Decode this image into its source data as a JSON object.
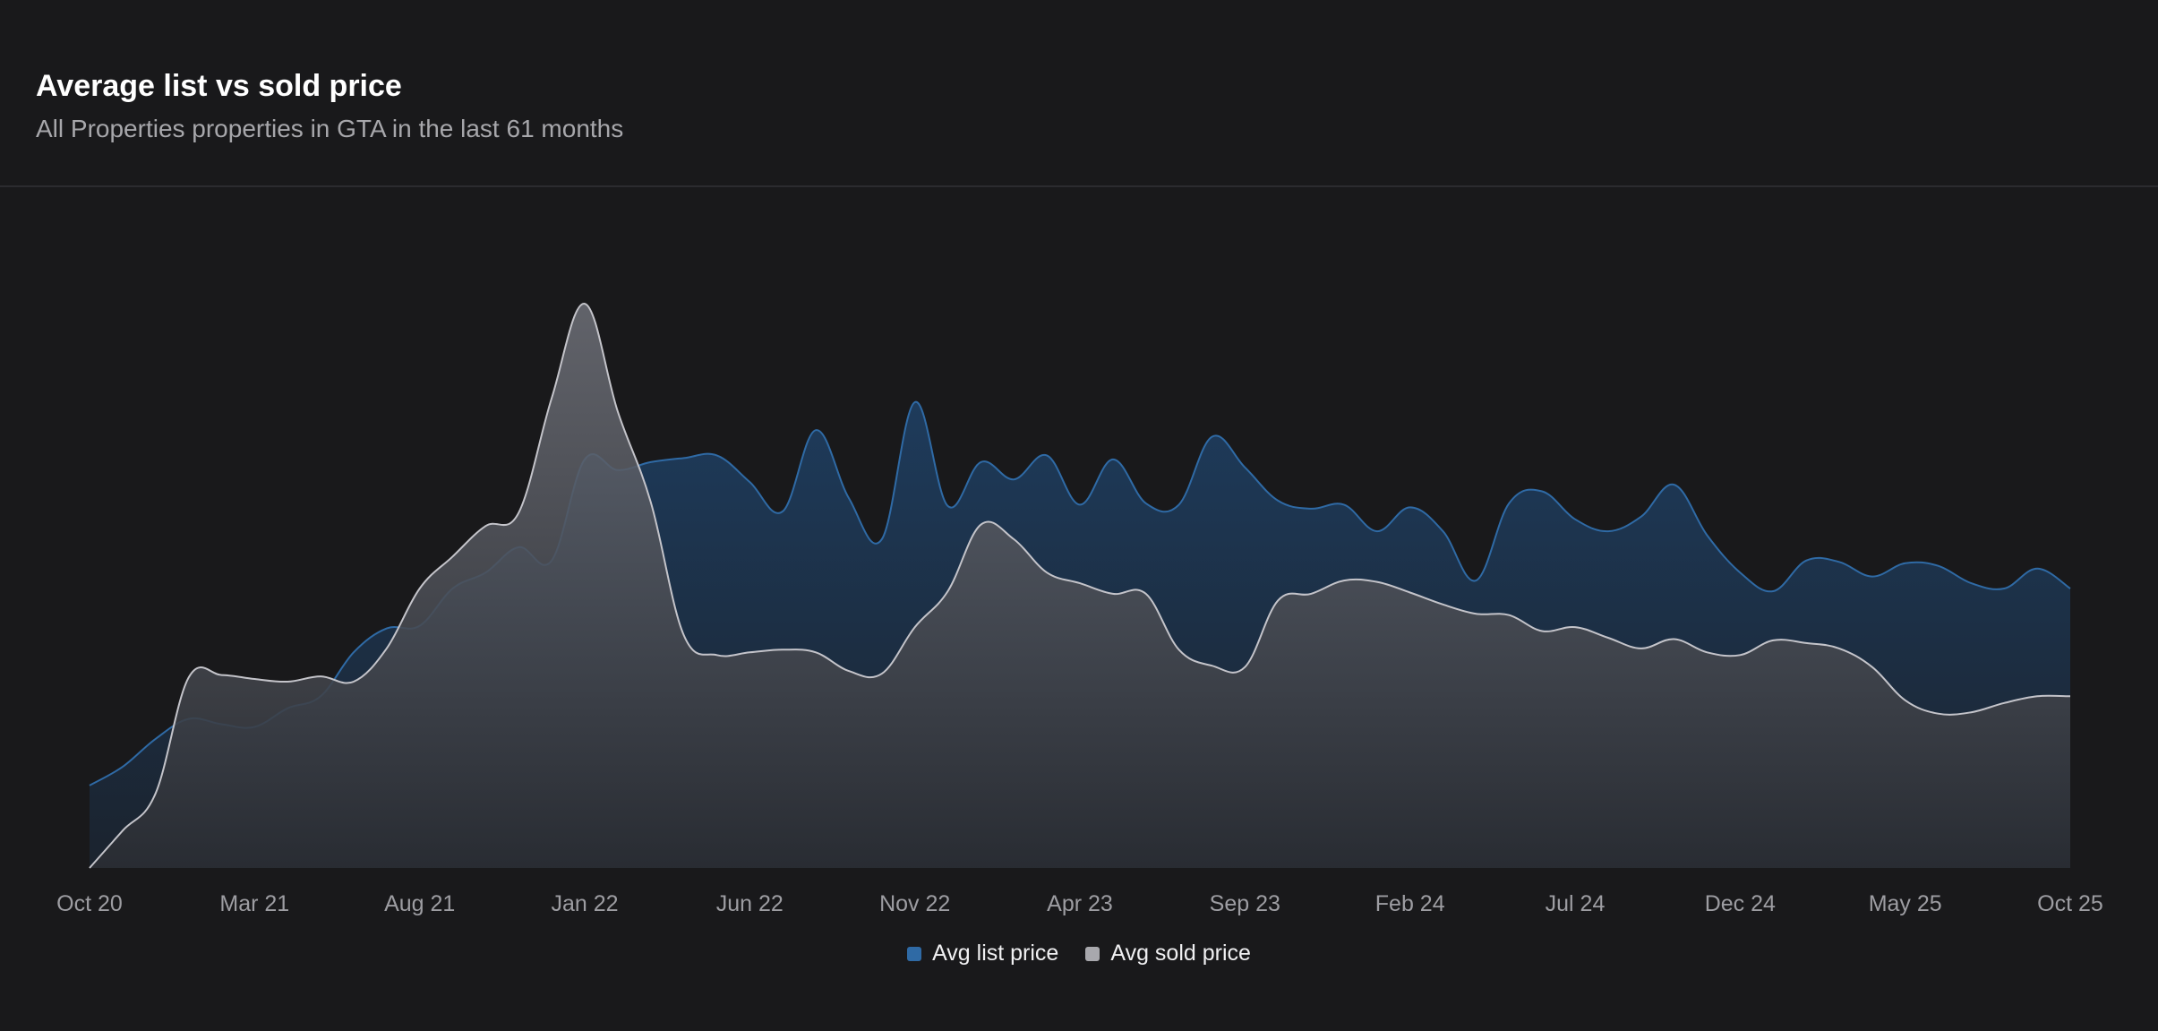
{
  "header": {
    "title": "Average list vs sold price",
    "subtitle": "All Properties properties in GTA in the last 61 months"
  },
  "colors": {
    "list": "#2f6aa5",
    "sold": "#b8b8be"
  },
  "chart_data": {
    "type": "area",
    "title": "Average list vs sold price",
    "subtitle": "All Properties properties in GTA in the last 61 months",
    "xlabel": "",
    "ylabel": "",
    "grid": false,
    "legend_position": "bottom-center",
    "x_ticks": [
      "Oct 20",
      "Mar 21",
      "Aug 21",
      "Jan 22",
      "Jun 22",
      "Nov 22",
      "Apr 23",
      "Sep 23",
      "Feb 24",
      "Jul 24",
      "Dec 24",
      "May 25",
      "Oct 25"
    ],
    "ylim": [
      0,
      420
    ],
    "x": [
      "Oct 20",
      "Nov 20",
      "Dec 20",
      "Jan 21",
      "Feb 21",
      "Mar 21",
      "Apr 21",
      "May 21",
      "Jun 21",
      "Jul 21",
      "Aug 21",
      "Sep 21",
      "Oct 21",
      "Nov 21",
      "Dec 21",
      "Jan 22",
      "Feb 22",
      "Mar 22",
      "Apr 22",
      "May 22",
      "Jun 22",
      "Jul 22",
      "Aug 22",
      "Sep 22",
      "Oct 22",
      "Nov 22",
      "Dec 22",
      "Jan 23",
      "Feb 23",
      "Mar 23",
      "Apr 23",
      "May 23",
      "Jun 23",
      "Jul 23",
      "Aug 23",
      "Sep 23",
      "Oct 23",
      "Nov 23",
      "Dec 23",
      "Jan 24",
      "Feb 24",
      "Mar 24",
      "Apr 24",
      "May 24",
      "Jun 24",
      "Jul 24",
      "Aug 24",
      "Sep 24",
      "Oct 24",
      "Nov 24",
      "Dec 24",
      "Jan 25",
      "Feb 25",
      "Mar 25",
      "Apr 25",
      "May 25",
      "Jun 25",
      "Jul 25",
      "Aug 25",
      "Sep 25",
      "Oct 25"
    ],
    "series": [
      {
        "name": "Avg list price",
        "values": [
          62,
          76,
          97,
          112,
          108,
          106,
          120,
          129,
          162,
          180,
          182,
          210,
          222,
          241,
          231,
          307,
          299,
          305,
          308,
          310,
          290,
          268,
          329,
          278,
          247,
          350,
          272,
          305,
          292,
          310,
          273,
          307,
          274,
          273,
          324,
          301,
          276,
          270,
          273,
          253,
          271,
          253,
          216,
          274,
          283,
          262,
          253,
          264,
          288,
          250,
          222,
          208,
          231,
          230,
          219,
          229,
          227,
          214,
          210,
          225,
          210
        ],
        "color": "#2f6aa5"
      },
      {
        "name": "Avg sold price",
        "values": [
          0,
          28,
          56,
          143,
          145,
          142,
          140,
          144,
          140,
          165,
          210,
          234,
          257,
          267,
          353,
          424,
          343,
          275,
          175,
          160,
          162,
          164,
          162,
          148,
          146,
          181,
          208,
          258,
          247,
          222,
          214,
          206,
          206,
          164,
          152,
          151,
          201,
          206,
          216,
          215,
          207,
          198,
          191,
          190,
          178,
          181,
          173,
          165,
          172,
          162,
          160,
          171,
          169,
          165,
          151,
          126,
          116,
          117,
          124,
          129,
          129
        ],
        "color": "#b8b8be"
      }
    ]
  }
}
